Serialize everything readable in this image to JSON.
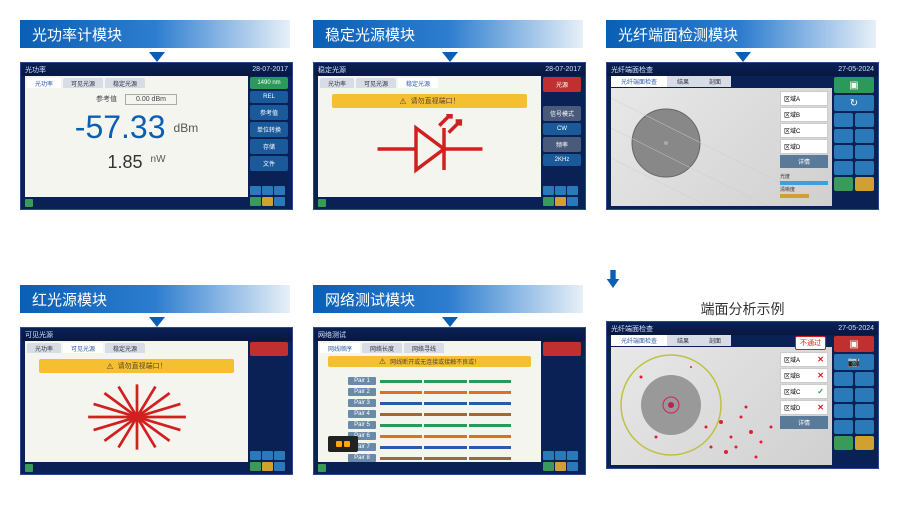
{
  "colors": {
    "primary": "#0a5fb5",
    "dark_bg": "#0a2155",
    "accent_green": "#2a9a5a",
    "accent_blue": "#2a7aba",
    "accent_red": "#c03030",
    "warn": "#f5c030"
  },
  "panels": {
    "power_meter": {
      "label": "光功率计模块",
      "title_left": "光功率",
      "date": "28-07-2017",
      "tabs": [
        "光功率",
        "可见光源",
        "稳定光源"
      ],
      "ref_label": "参考值",
      "ref_value": "0.00 dBm",
      "reading": "-57.33",
      "reading_unit": "dBm",
      "sub_reading": "1.85",
      "sub_unit": "nW",
      "side": [
        "1490 nm",
        "REL",
        "参考值",
        "单位转换",
        "存储",
        "文件"
      ]
    },
    "light_source": {
      "label": "稳定光源模块",
      "title_left": "稳定光源",
      "date": "28-07-2017",
      "tabs": [
        "光功率",
        "可见光源",
        "稳定光源"
      ],
      "warn": "请勿直视端口！",
      "side": [
        "光源",
        "",
        "信号模式",
        "CW",
        "频率",
        "2KHz"
      ]
    },
    "fiber_scope": {
      "label": "光纤端面检测模块",
      "title_left": "光纤端面检查",
      "date": "27-05-2024",
      "tabs": [
        "光纤端面检查",
        "结果",
        "剖面"
      ],
      "zones": [
        "区域A",
        "区域B",
        "区域C",
        "区域D"
      ],
      "detail": "详情",
      "legend": [
        "光度",
        "清晰度"
      ]
    },
    "red_source": {
      "label": "红光源模块",
      "title_left": "可见光源",
      "tabs": [
        "光功率",
        "可见光源",
        "稳定光源"
      ],
      "warn": "请勿直视端口！"
    },
    "network": {
      "label": "网络测试模块",
      "title_left": "网络测试",
      "tabs": [
        "网线顺序",
        "网络长度",
        "网络寻线"
      ],
      "warn": "网线断开或无连接或接触不良或！",
      "rows": [
        "Pair 1",
        "Pair 2",
        "Pair 3",
        "Pair 4",
        "Pair 5",
        "Pair 6",
        "Pair 7",
        "Pair 8"
      ],
      "row_colors": [
        "#2a9a5a",
        "#e07020",
        "#2a5aaa",
        "#9a6a3a",
        "#2a9a5a",
        "#e07020",
        "#2a5aaa",
        "#9a6a3a"
      ]
    },
    "analysis": {
      "label": "端面分析示例",
      "title_left": "光纤端面检查",
      "date": "27-05-2024",
      "tabs": [
        "光纤端面检查",
        "结果",
        "剖面"
      ],
      "fail": "不通过",
      "zones": [
        {
          "n": "区域A",
          "ok": false
        },
        {
          "n": "区域B",
          "ok": false
        },
        {
          "n": "区域C",
          "ok": true
        },
        {
          "n": "区域D",
          "ok": false
        }
      ],
      "detail": "详情"
    }
  }
}
